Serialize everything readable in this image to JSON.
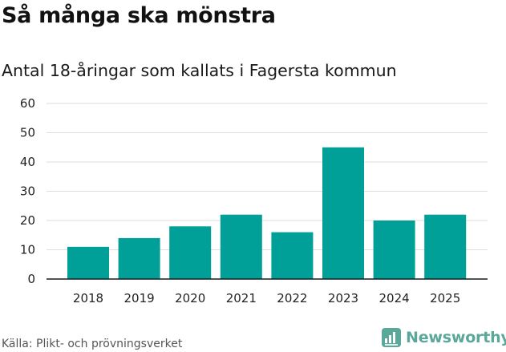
{
  "header": {
    "title": "Så många ska mönstra",
    "subtitle": "Antal 18-åringar som kallats i Fagersta kommun"
  },
  "footer": {
    "source": "Källa: Plikt- och prövningsverket",
    "brand": "Newsworthy",
    "brand_icon": "newsworthy-logo-icon"
  },
  "colors": {
    "bar": "#00a099",
    "grid": "#dedede",
    "axis": "#1a1a1a",
    "brand": "#5aa89a"
  },
  "chart_data": {
    "type": "bar",
    "categories": [
      "2018",
      "2019",
      "2020",
      "2021",
      "2022",
      "2023",
      "2024",
      "2025"
    ],
    "values": [
      11,
      14,
      18,
      22,
      16,
      45,
      20,
      22
    ],
    "yticks": [
      "0",
      "10",
      "20",
      "30",
      "40",
      "50",
      "60"
    ],
    "ylim": [
      0,
      60
    ],
    "grid": true,
    "legend": "none"
  }
}
